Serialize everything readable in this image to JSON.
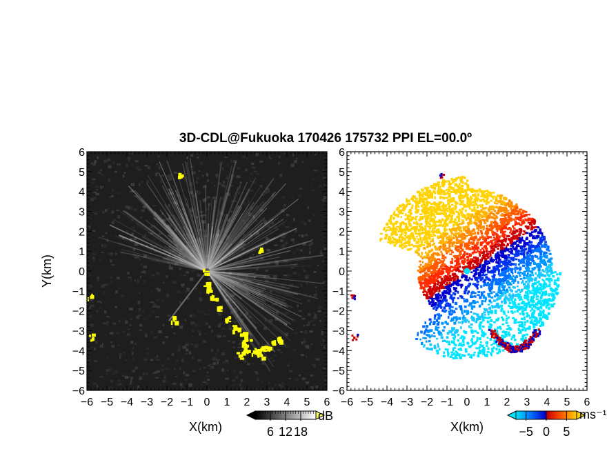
{
  "title": "3D-CDL@Fukuoka 170426 175732 PPI EL=00.0º",
  "chart_data": [
    {
      "type": "heatmap",
      "panel": "left",
      "quantity": "reflectivity / SNR",
      "xlabel": "X(km)",
      "ylabel": "Y(km)",
      "xlim": [
        -6,
        6
      ],
      "ylim": [
        -6,
        6
      ],
      "xticks": [
        "−6",
        "−5",
        "−4",
        "−3",
        "−2",
        "−1",
        "0",
        "1",
        "2",
        "3",
        "4",
        "5",
        "6"
      ],
      "yticks": [
        "−6",
        "−5",
        "−4",
        "−3",
        "−2",
        "−1",
        "0",
        "1",
        "2",
        "3",
        "4",
        "5",
        "6"
      ],
      "colorbar": {
        "unit": "dB",
        "ticks": [
          "6",
          "12",
          "18"
        ],
        "range": [
          0,
          24
        ],
        "colors": [
          "#000000",
          "#ffffff"
        ]
      },
      "highlight_color": "#ffff00",
      "background_color": "#1e1e1e"
    },
    {
      "type": "heatmap",
      "panel": "right",
      "quantity": "radial velocity",
      "xlabel": "X(km)",
      "xlim": [
        -6,
        6
      ],
      "ylim": [
        -6,
        6
      ],
      "xticks": [
        "−6",
        "−5",
        "−4",
        "−3",
        "−2",
        "−1",
        "0",
        "1",
        "2",
        "3",
        "4",
        "5",
        "6"
      ],
      "yticks": [
        "−6",
        "−5",
        "−4",
        "−3",
        "−2",
        "−1",
        "0",
        "1",
        "2",
        "3",
        "4",
        "5",
        "6"
      ],
      "colorbar": {
        "unit": "ms⁻¹",
        "ticks": [
          "−5",
          "0",
          "5"
        ],
        "range": [
          -7.5,
          7.5
        ],
        "colors": [
          "#00e5ff",
          "#0070ff",
          "#0000cc",
          "#cc0000",
          "#ff5a00",
          "#ffd200"
        ]
      }
    }
  ]
}
